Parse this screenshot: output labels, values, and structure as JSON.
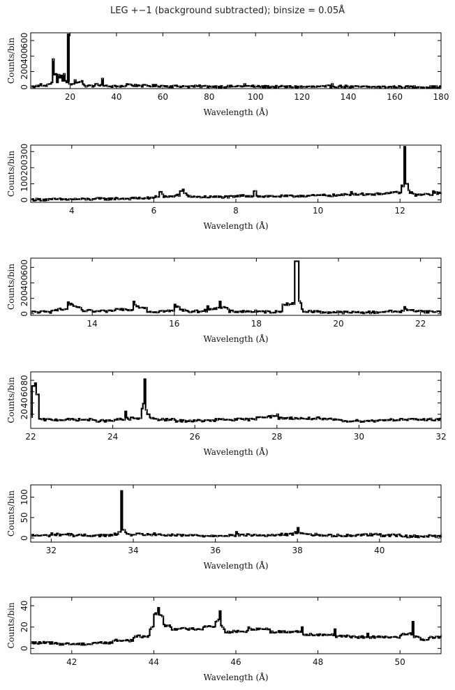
{
  "title": "LEG +−1 (background subtracted); binsize = 0.05Å",
  "chart_data": [
    {
      "type": "line",
      "xlabel": "Wavelength (Å)",
      "ylabel": "Counts/bin",
      "xlim": [
        3,
        180
      ],
      "ylim": [
        -20,
        700
      ],
      "xticks": [
        20,
        40,
        60,
        80,
        100,
        120,
        140,
        160,
        180
      ],
      "yticks": [
        0,
        200,
        400,
        600
      ],
      "series": [
        {
          "x": [
            3,
            5,
            7,
            9,
            10,
            11,
            12,
            12.1,
            12.4,
            13,
            13.4,
            14,
            15,
            15.2,
            16,
            16.5,
            17,
            17.5,
            18,
            18.5,
            18.97,
            19.3,
            20,
            21,
            21.6,
            22,
            23,
            24.78,
            26,
            30,
            33.7,
            34,
            36,
            40,
            44.1,
            46,
            50,
            60,
            70,
            80,
            90,
            95,
            100,
            110,
            120,
            130,
            133,
            140,
            150,
            160,
            170,
            180
          ],
          "y": [
            5,
            8,
            40,
            20,
            35,
            40,
            60,
            360,
            60,
            160,
            170,
            60,
            160,
            120,
            150,
            80,
            170,
            80,
            60,
            120,
            680,
            40,
            30,
            40,
            90,
            70,
            60,
            80,
            20,
            15,
            110,
            15,
            10,
            8,
            40,
            30,
            20,
            15,
            10,
            8,
            6,
            40,
            5,
            4,
            3,
            3,
            40,
            2,
            2,
            1,
            1,
            0
          ]
        }
      ]
    },
    {
      "type": "line",
      "xlabel": "Wavelength (Å)",
      "ylabel": "Counts/bin",
      "xlim": [
        3,
        13
      ],
      "ylim": [
        -15,
        340
      ],
      "xticks": [
        4,
        6,
        8,
        10,
        12
      ],
      "yticks": [
        0,
        100,
        200,
        300
      ],
      "series": [
        {
          "x": [
            3,
            3.5,
            4,
            4.5,
            5,
            5.5,
            6,
            6.15,
            6.2,
            6.3,
            6.5,
            6.65,
            6.7,
            6.8,
            7,
            7.5,
            8,
            8.45,
            8.5,
            9,
            9.5,
            10,
            10.5,
            10.8,
            11,
            11.5,
            11.8,
            12.0,
            12.1,
            12.15,
            12.2,
            12.3,
            12.5,
            12.8,
            13
          ],
          "y": [
            2,
            3,
            4,
            6,
            8,
            10,
            15,
            50,
            35,
            20,
            25,
            55,
            65,
            30,
            20,
            18,
            20,
            55,
            25,
            22,
            25,
            30,
            28,
            50,
            35,
            40,
            45,
            45,
            330,
            100,
            60,
            40,
            30,
            55,
            40
          ]
        }
      ]
    },
    {
      "type": "line",
      "xlabel": "Wavelength (Å)",
      "ylabel": "Counts/bin",
      "xlim": [
        12.5,
        22.5
      ],
      "ylim": [
        -20,
        720
      ],
      "xticks": [
        14,
        16,
        18,
        20,
        22
      ],
      "yticks": [
        0,
        200,
        400,
        600
      ],
      "series": [
        {
          "x": [
            12.5,
            13,
            13.4,
            13.5,
            13.7,
            14,
            14.5,
            15.0,
            15.1,
            15.3,
            15.6,
            16.0,
            16.1,
            16.3,
            16.6,
            16.8,
            17.0,
            17.1,
            17.3,
            18,
            18.6,
            18.95,
            19.0,
            19.1,
            19.5,
            20,
            20.5,
            21,
            21.6,
            21.7,
            22,
            22.5
          ],
          "y": [
            20,
            40,
            150,
            120,
            80,
            30,
            40,
            160,
            100,
            80,
            20,
            120,
            90,
            40,
            30,
            100,
            60,
            160,
            60,
            25,
            30,
            680,
            680,
            60,
            25,
            20,
            18,
            20,
            90,
            50,
            40,
            25
          ]
        }
      ]
    },
    {
      "type": "line",
      "xlabel": "Wavelength (Å)",
      "ylabel": "Counts/bin",
      "xlim": [
        22,
        32
      ],
      "ylim": [
        -5,
        95
      ],
      "xticks": [
        22,
        24,
        26,
        28,
        30,
        32
      ],
      "yticks": [
        20,
        40,
        60,
        80
      ],
      "series": [
        {
          "x": [
            22,
            22.05,
            22.1,
            22.15,
            22.2,
            22.5,
            23,
            23.5,
            24,
            24.3,
            24.4,
            24.7,
            24.78,
            24.85,
            25,
            25.5,
            26,
            26.5,
            27,
            27.5,
            28,
            28.5,
            29,
            29.5,
            30,
            30.5,
            31,
            31.5,
            32
          ],
          "y": [
            15,
            70,
            75,
            55,
            12,
            10,
            12,
            10,
            8,
            25,
            10,
            30,
            82,
            20,
            12,
            10,
            8,
            12,
            10,
            15,
            20,
            12,
            15,
            10,
            8,
            10,
            12,
            10,
            15
          ]
        }
      ]
    },
    {
      "type": "line",
      "xlabel": "Wavelength (Å)",
      "ylabel": "Counts/bin",
      "xlim": [
        31.5,
        41.5
      ],
      "ylim": [
        -10,
        130
      ],
      "xticks": [
        32,
        34,
        36,
        38,
        40
      ],
      "yticks": [
        0,
        50,
        100
      ],
      "series": [
        {
          "x": [
            31.5,
            32,
            32.5,
            33,
            33.5,
            33.65,
            33.7,
            33.75,
            33.85,
            34,
            34.5,
            35,
            35.5,
            36,
            36.5,
            37,
            37.5,
            37.9,
            38.0,
            38.2,
            38.5,
            39,
            39.5,
            40,
            40.5,
            41,
            41.5
          ],
          "y": [
            5,
            12,
            8,
            6,
            8,
            15,
            115,
            20,
            10,
            8,
            12,
            6,
            8,
            5,
            15,
            6,
            8,
            12,
            25,
            10,
            8,
            6,
            8,
            10,
            6,
            4,
            8
          ]
        }
      ]
    },
    {
      "type": "line",
      "xlabel": "Wavelength (Å)",
      "ylabel": "Counts/bin",
      "xlim": [
        41,
        51
      ],
      "ylim": [
        -5,
        48
      ],
      "xticks": [
        42,
        44,
        46,
        48,
        50
      ],
      "yticks": [
        0,
        20,
        40
      ],
      "series": [
        {
          "x": [
            41,
            41.5,
            42,
            42.5,
            43,
            43.5,
            43.9,
            44.0,
            44.1,
            44.2,
            44.4,
            44.8,
            45.2,
            45.5,
            45.6,
            45.7,
            45.9,
            46.3,
            46.8,
            47.2,
            47.6,
            48,
            48.4,
            48.8,
            49.2,
            49.6,
            50,
            50.3,
            50.5,
            50.7,
            51
          ],
          "y": [
            5,
            6,
            4,
            5,
            7,
            10,
            18,
            32,
            38,
            30,
            20,
            18,
            20,
            25,
            35,
            18,
            15,
            20,
            18,
            15,
            20,
            12,
            18,
            10,
            14,
            10,
            12,
            25,
            8,
            10,
            12
          ]
        }
      ]
    }
  ]
}
